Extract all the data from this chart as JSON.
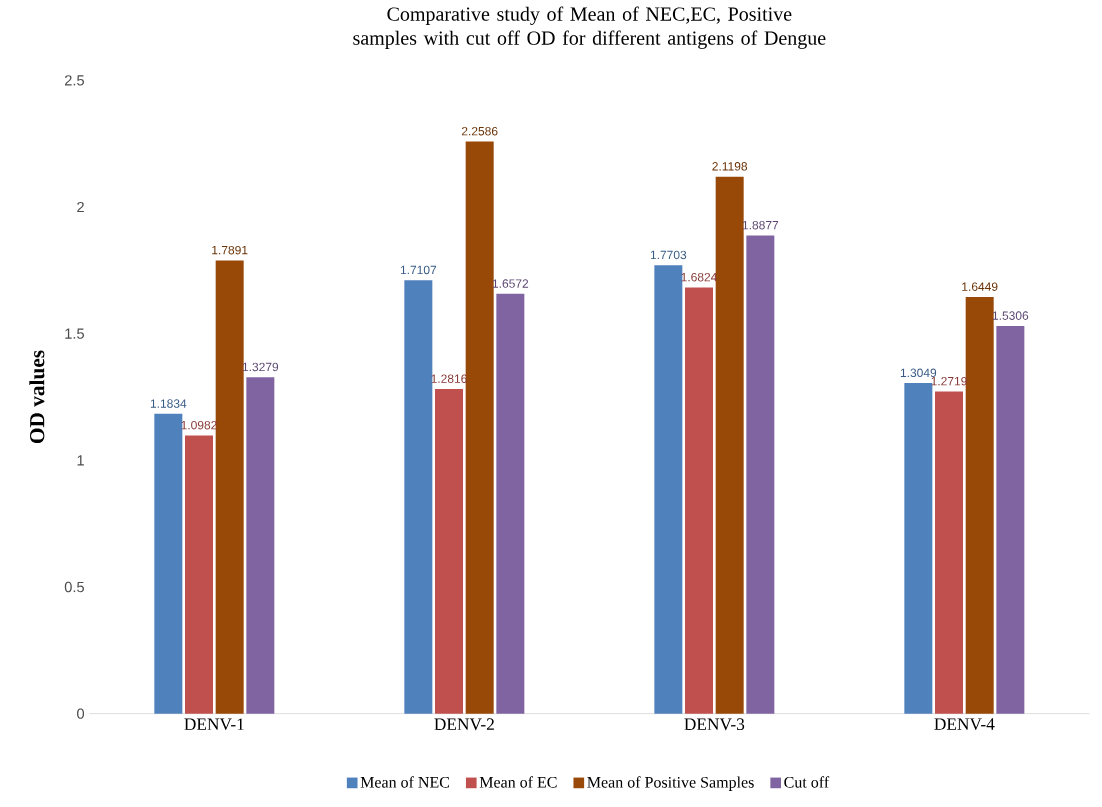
{
  "chart_data": {
    "type": "bar",
    "title": "Comparative study of Mean of NEC,EC, Positive samples with cut off OD for different antigens of Dengue",
    "ylabel": "OD values",
    "categories": [
      "DENV-1",
      "DENV-2",
      "DENV-3",
      "DENV-4"
    ],
    "series": [
      {
        "name": "Mean of NEC",
        "color": "#4f81bd",
        "values": [
          1.1834,
          1.7107,
          1.7703,
          1.3049
        ]
      },
      {
        "name": "Mean of EC",
        "color": "#c0504d",
        "values": [
          1.0982,
          1.2816,
          1.6824,
          1.2719
        ]
      },
      {
        "name": "Mean of Positive Samples",
        "color": "#984807",
        "values": [
          1.7891,
          2.2586,
          2.1198,
          1.6449
        ]
      },
      {
        "name": "Cut off",
        "color": "#8064a2",
        "values": [
          1.3279,
          1.6572,
          1.8877,
          1.5306
        ]
      }
    ],
    "ylim": [
      0,
      2.5
    ],
    "yticks": [
      0,
      0.5,
      1,
      1.5,
      2,
      2.5
    ],
    "data_labels": true,
    "legend": "bottom"
  }
}
